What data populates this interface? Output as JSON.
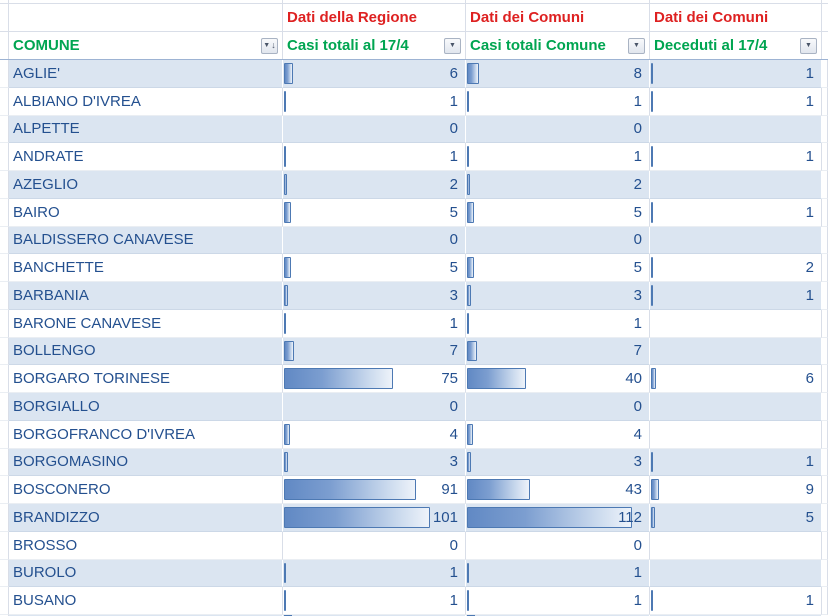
{
  "table": {
    "group_headers": [
      {
        "label": "Dati della Regione"
      },
      {
        "label": "Dati dei Comuni"
      },
      {
        "label": "Dati dei Comuni"
      }
    ],
    "columns": [
      {
        "key": "comune",
        "label": "COMUNE",
        "sorted": true
      },
      {
        "key": "casi_regione",
        "label": "Casi totali al 17/4",
        "bar_max": 113
      },
      {
        "key": "casi_comune",
        "label": "Casi totali Comune",
        "bar_max": 112
      },
      {
        "key": "deceduti",
        "label": "Deceduti al 17/4",
        "bar_max": 174
      }
    ],
    "rows": [
      {
        "comune": "AGLIE'",
        "casi_regione": 6,
        "casi_comune": 8,
        "deceduti": 1
      },
      {
        "comune": "ALBIANO D'IVREA",
        "casi_regione": 1,
        "casi_comune": 1,
        "deceduti": 1
      },
      {
        "comune": "ALPETTE",
        "casi_regione": 0,
        "casi_comune": 0,
        "deceduti": null
      },
      {
        "comune": "ANDRATE",
        "casi_regione": 1,
        "casi_comune": 1,
        "deceduti": 1
      },
      {
        "comune": "AZEGLIO",
        "casi_regione": 2,
        "casi_comune": 2,
        "deceduti": null
      },
      {
        "comune": "BAIRO",
        "casi_regione": 5,
        "casi_comune": 5,
        "deceduti": 1
      },
      {
        "comune": "BALDISSERO CANAVESE",
        "casi_regione": 0,
        "casi_comune": 0,
        "deceduti": null
      },
      {
        "comune": "BANCHETTE",
        "casi_regione": 5,
        "casi_comune": 5,
        "deceduti": 2
      },
      {
        "comune": "BARBANIA",
        "casi_regione": 3,
        "casi_comune": 3,
        "deceduti": 1
      },
      {
        "comune": "BARONE CANAVESE",
        "casi_regione": 1,
        "casi_comune": 1,
        "deceduti": null
      },
      {
        "comune": "BOLLENGO",
        "casi_regione": 7,
        "casi_comune": 7,
        "deceduti": null
      },
      {
        "comune": "BORGARO TORINESE",
        "casi_regione": 75,
        "casi_comune": 40,
        "deceduti": 6
      },
      {
        "comune": "BORGIALLO",
        "casi_regione": 0,
        "casi_comune": 0,
        "deceduti": null
      },
      {
        "comune": "BORGOFRANCO D'IVREA",
        "casi_regione": 4,
        "casi_comune": 4,
        "deceduti": null
      },
      {
        "comune": "BORGOMASINO",
        "casi_regione": 3,
        "casi_comune": 3,
        "deceduti": 1
      },
      {
        "comune": "BOSCONERO",
        "casi_regione": 91,
        "casi_comune": 43,
        "deceduti": 9
      },
      {
        "comune": "BRANDIZZO",
        "casi_regione": 101,
        "casi_comune": 112,
        "deceduti": 5
      },
      {
        "comune": "BROSSO",
        "casi_regione": 0,
        "casi_comune": 0,
        "deceduti": null
      },
      {
        "comune": "BUROLO",
        "casi_regione": 1,
        "casi_comune": 1,
        "deceduti": null
      },
      {
        "comune": "BUSANO",
        "casi_regione": 1,
        "casi_comune": 1,
        "deceduti": 1
      }
    ]
  },
  "icons": {
    "filter_dropdown": "▼",
    "sort_applied": "↓"
  },
  "colors": {
    "header_red": "#de2121",
    "header_green": "#00a551",
    "text_navy": "#24508f",
    "row_stripe": "#dbe5f1",
    "bar_fill_start": "#6189c4",
    "bar_border": "#4d79b3"
  }
}
